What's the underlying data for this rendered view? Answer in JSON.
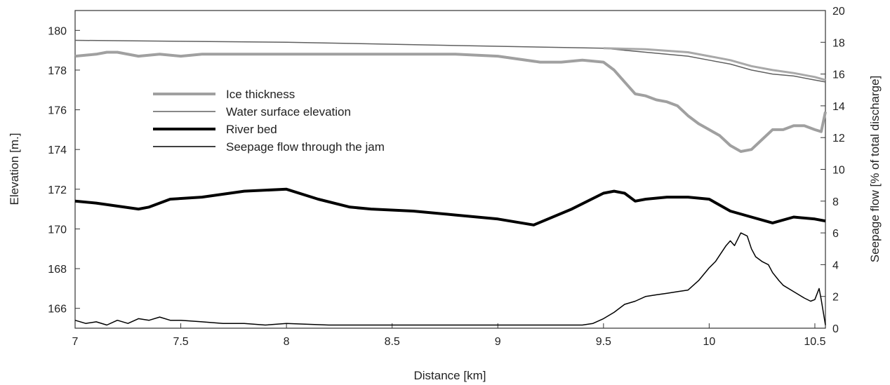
{
  "chart_data": {
    "type": "line",
    "title": "",
    "xlabel": "Distance [km]",
    "ylabel": "Elevation [m.]",
    "y2label": "Seepage flow [% of total discharge]",
    "xlim": [
      7,
      10.55
    ],
    "ylim": [
      165,
      181
    ],
    "y2lim": [
      0,
      20
    ],
    "x_ticks": [
      7,
      7.5,
      8,
      8.5,
      9,
      9.5,
      10,
      10.5
    ],
    "x_tick_labels": [
      "7",
      "7.5",
      "8",
      "8.5",
      "9",
      "9.5",
      "10",
      "10.5"
    ],
    "y_ticks": [
      166,
      168,
      170,
      172,
      174,
      176,
      178,
      180
    ],
    "y_tick_labels": [
      "166",
      "168",
      "170",
      "172",
      "174",
      "176",
      "178",
      "180"
    ],
    "y2_ticks": [
      0,
      2,
      4,
      6,
      8,
      10,
      12,
      14,
      16,
      18,
      20
    ],
    "y2_tick_labels": [
      "0",
      "2",
      "4",
      "6",
      "8",
      "10",
      "12",
      "14",
      "16",
      "18",
      "20"
    ],
    "grid": false,
    "legend_position": "upper-left",
    "series": [
      {
        "name": "Ice thickness",
        "axis": "left",
        "color": "#a0a0a0",
        "x": [
          7.0,
          7.1,
          7.15,
          7.2,
          7.3,
          7.4,
          7.5,
          7.6,
          7.8,
          8.0,
          8.2,
          8.5,
          8.8,
          9.0,
          9.2,
          9.3,
          9.4,
          9.5,
          9.55,
          9.6,
          9.65,
          9.7,
          9.75,
          9.8,
          9.85,
          9.9,
          9.95,
          10.0,
          10.05,
          10.1,
          10.15,
          10.2,
          10.25,
          10.3,
          10.35,
          10.4,
          10.45,
          10.5,
          10.53,
          10.55
        ],
        "y": [
          178.7,
          178.8,
          178.9,
          178.9,
          178.7,
          178.8,
          178.7,
          178.8,
          178.8,
          178.8,
          178.8,
          178.8,
          178.8,
          178.7,
          178.4,
          178.4,
          178.5,
          178.4,
          178.0,
          177.4,
          176.8,
          176.7,
          176.5,
          176.4,
          176.2,
          175.7,
          175.3,
          175.0,
          174.7,
          174.2,
          173.9,
          174.0,
          174.5,
          175.0,
          175.0,
          175.2,
          175.2,
          175.0,
          174.9,
          175.9
        ]
      },
      {
        "name": "Water surface elevation",
        "axis": "left",
        "color": "#606060",
        "x": [
          7.0,
          7.5,
          8.0,
          8.5,
          9.0,
          9.5,
          9.7,
          9.9,
          10.0,
          10.1,
          10.2,
          10.3,
          10.4,
          10.5,
          10.55
        ],
        "y": [
          179.5,
          179.45,
          179.4,
          179.3,
          179.2,
          179.1,
          178.9,
          178.7,
          178.5,
          178.3,
          178.0,
          177.8,
          177.7,
          177.5,
          177.4
        ]
      },
      {
        "name": "",
        "axis": "left",
        "color": "#a8a8a8",
        "x": [
          9.5,
          9.7,
          9.9,
          10.0,
          10.1,
          10.2,
          10.3,
          10.4,
          10.5,
          10.55
        ],
        "y": [
          179.1,
          179.05,
          178.9,
          178.7,
          178.5,
          178.2,
          178.0,
          177.85,
          177.65,
          177.5
        ]
      },
      {
        "name": "River bed",
        "axis": "left",
        "color": "#000000",
        "x": [
          7.0,
          7.1,
          7.3,
          7.35,
          7.45,
          7.6,
          7.8,
          8.0,
          8.15,
          8.3,
          8.4,
          8.6,
          8.8,
          9.0,
          9.17,
          9.35,
          9.5,
          9.55,
          9.6,
          9.65,
          9.7,
          9.8,
          9.9,
          10.0,
          10.1,
          10.2,
          10.3,
          10.4,
          10.5,
          10.55
        ],
        "y": [
          171.4,
          171.3,
          171.0,
          171.1,
          171.5,
          171.6,
          171.9,
          172.0,
          171.5,
          171.1,
          171.0,
          170.9,
          170.7,
          170.5,
          170.2,
          171.0,
          171.8,
          171.9,
          171.8,
          171.4,
          171.5,
          171.6,
          171.6,
          171.5,
          170.9,
          170.6,
          170.3,
          170.6,
          170.5,
          170.4
        ]
      },
      {
        "name": "Seepage flow through the jam",
        "axis": "right",
        "color": "#000000",
        "x": [
          7.0,
          7.05,
          7.1,
          7.15,
          7.2,
          7.25,
          7.3,
          7.35,
          7.4,
          7.45,
          7.5,
          7.6,
          7.7,
          7.8,
          7.9,
          8.0,
          8.2,
          8.4,
          8.6,
          8.8,
          9.0,
          9.2,
          9.4,
          9.45,
          9.5,
          9.55,
          9.6,
          9.65,
          9.7,
          9.75,
          9.8,
          9.85,
          9.9,
          9.95,
          10.0,
          10.03,
          10.05,
          10.08,
          10.1,
          10.12,
          10.15,
          10.18,
          10.2,
          10.22,
          10.25,
          10.28,
          10.3,
          10.33,
          10.35,
          10.4,
          10.45,
          10.48,
          10.5,
          10.52,
          10.53,
          10.55
        ],
        "y": [
          0.5,
          0.3,
          0.4,
          0.2,
          0.5,
          0.3,
          0.6,
          0.5,
          0.7,
          0.5,
          0.5,
          0.4,
          0.3,
          0.3,
          0.2,
          0.3,
          0.2,
          0.2,
          0.2,
          0.2,
          0.2,
          0.2,
          0.2,
          0.3,
          0.6,
          1.0,
          1.5,
          1.7,
          2.0,
          2.1,
          2.2,
          2.3,
          2.4,
          3.0,
          3.8,
          4.2,
          4.6,
          5.2,
          5.5,
          5.2,
          6.0,
          5.8,
          5.0,
          4.5,
          4.2,
          4.0,
          3.5,
          3.0,
          2.7,
          2.3,
          1.9,
          1.7,
          1.8,
          2.5,
          1.8,
          0.2
        ]
      }
    ]
  }
}
